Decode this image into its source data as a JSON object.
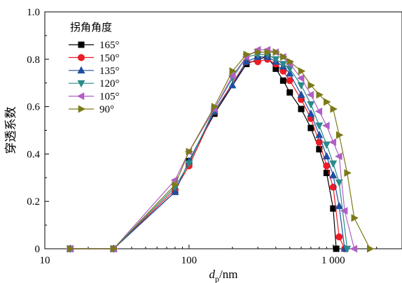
{
  "chart_data": {
    "type": "line",
    "xscale": "log",
    "xlim": [
      10,
      3000
    ],
    "ylim": [
      0,
      1.0
    ],
    "x_ticks": [
      "10",
      "100",
      "1 000"
    ],
    "y_ticks": [
      "0",
      "0.2",
      "0.4",
      "0.6",
      "0.8",
      "1.0"
    ],
    "xlabel": {
      "main": "d",
      "sub": "p",
      "unit": "/nm"
    },
    "ylabel": "穿透系数",
    "legend_title": "拐角角度",
    "legend_position": "top-left",
    "grid": false,
    "series": [
      {
        "name": "165°",
        "color": "#000000",
        "marker": "square",
        "x": [
          15,
          30,
          80,
          100,
          150,
          250,
          300,
          350,
          400,
          450,
          500,
          600,
          700,
          800,
          900,
          1000,
          1050
        ],
        "y": [
          0,
          0,
          0.24,
          0.37,
          0.57,
          0.78,
          0.8,
          0.81,
          0.76,
          0.71,
          0.66,
          0.59,
          0.51,
          0.42,
          0.32,
          0.17,
          0
        ]
      },
      {
        "name": "150°",
        "color": "#ee1c25",
        "marker": "circle",
        "x": [
          15,
          30,
          80,
          100,
          150,
          250,
          300,
          350,
          400,
          450,
          500,
          600,
          700,
          800,
          900,
          1000,
          1100,
          1200
        ],
        "y": [
          0,
          0,
          0.25,
          0.35,
          0.58,
          0.79,
          0.79,
          0.8,
          0.78,
          0.75,
          0.71,
          0.63,
          0.55,
          0.45,
          0.35,
          0.26,
          0.05,
          0
        ]
      },
      {
        "name": "135°",
        "color": "#1f4ea1",
        "marker": "triangle-up",
        "x": [
          15,
          30,
          80,
          100,
          150,
          200,
          250,
          300,
          350,
          400,
          450,
          500,
          600,
          700,
          800,
          900,
          1000,
          1100,
          1200
        ],
        "y": [
          0,
          0,
          0.24,
          0.37,
          0.58,
          0.69,
          0.79,
          0.81,
          0.81,
          0.79,
          0.77,
          0.74,
          0.65,
          0.57,
          0.48,
          0.39,
          0.31,
          0.18,
          0
        ]
      },
      {
        "name": "120°",
        "color": "#2a8a8a",
        "marker": "triangle-down",
        "x": [
          15,
          30,
          80,
          100,
          150,
          200,
          250,
          300,
          350,
          400,
          450,
          500,
          600,
          700,
          800,
          900,
          1000,
          1100,
          1250
        ],
        "y": [
          0,
          0,
          0.26,
          0.36,
          0.59,
          0.72,
          0.81,
          0.82,
          0.82,
          0.8,
          0.78,
          0.76,
          0.69,
          0.61,
          0.52,
          0.44,
          0.36,
          0.28,
          0
        ]
      },
      {
        "name": "105°",
        "color": "#b05fc4",
        "marker": "triangle-left",
        "x": [
          15,
          30,
          80,
          100,
          150,
          200,
          250,
          300,
          350,
          400,
          450,
          500,
          600,
          700,
          800,
          900,
          1000,
          1100,
          1200,
          1400
        ],
        "y": [
          0,
          0,
          0.29,
          0.41,
          0.59,
          0.73,
          0.81,
          0.84,
          0.84,
          0.83,
          0.81,
          0.78,
          0.72,
          0.65,
          0.58,
          0.52,
          0.45,
          0.39,
          0.16,
          0
        ]
      },
      {
        "name": "90°",
        "color": "#7b7a1a",
        "marker": "triangle-right",
        "x": [
          15,
          30,
          80,
          100,
          150,
          200,
          250,
          300,
          350,
          400,
          450,
          500,
          600,
          700,
          800,
          900,
          1000,
          1100,
          1250,
          1400,
          1800
        ],
        "y": [
          0,
          0,
          0.27,
          0.41,
          0.6,
          0.75,
          0.82,
          0.83,
          0.83,
          0.83,
          0.81,
          0.79,
          0.75,
          0.69,
          0.65,
          0.62,
          0.59,
          0.48,
          0.32,
          0.13,
          0
        ]
      }
    ]
  }
}
